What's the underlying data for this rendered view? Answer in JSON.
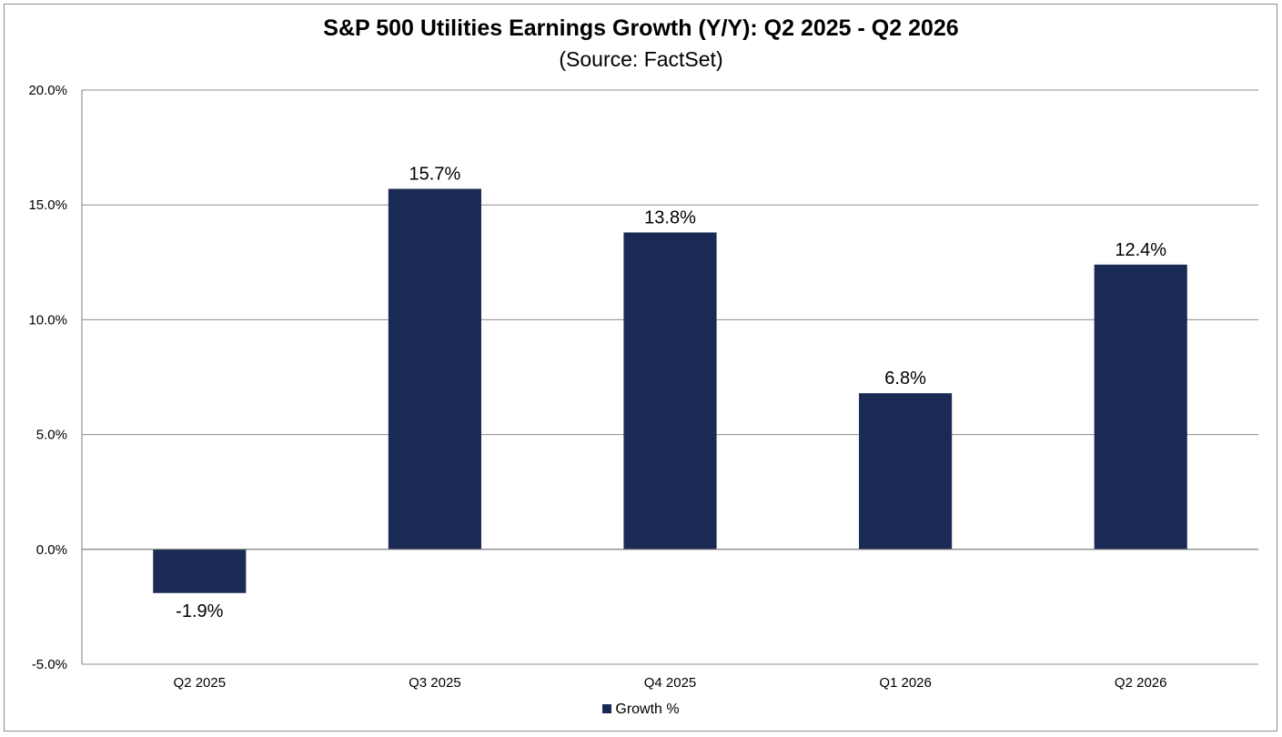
{
  "chart_data": {
    "type": "bar",
    "title": "S&P 500 Utilities  Earnings Growth (Y/Y): Q2 2025 - Q2 2026",
    "subtitle": "(Source: FactSet)",
    "categories": [
      "Q2 2025",
      "Q3 2025",
      "Q4 2025",
      "Q1 2026",
      "Q2 2026"
    ],
    "series": [
      {
        "name": "Growth %",
        "values": [
          -1.9,
          15.7,
          13.8,
          6.8,
          12.4
        ],
        "data_labels": [
          "-1.9%",
          "15.7%",
          "13.8%",
          "6.8%",
          "12.4%"
        ]
      }
    ],
    "ylim": [
      -5,
      20
    ],
    "yticks": [
      -5,
      0,
      5,
      10,
      15,
      20
    ],
    "ytick_labels": [
      "-5.0%",
      "0.0%",
      "5.0%",
      "10.0%",
      "15.0%",
      "20.0%"
    ],
    "grid": true,
    "legend_position": "bottom",
    "colors": {
      "bar": "#1b2a54",
      "grid": "#8c8c8c",
      "axis": "#7f7f7f"
    }
  }
}
